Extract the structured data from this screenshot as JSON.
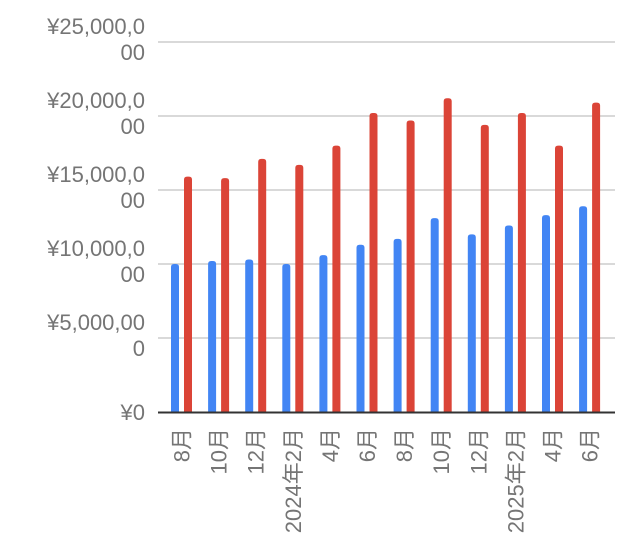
{
  "chart_data": {
    "type": "bar",
    "categories": [
      "8月",
      "10月",
      "12月",
      "2024年2月",
      "4月",
      "6月",
      "8月",
      "10月",
      "12月",
      "2025年2月",
      "4月",
      "6月"
    ],
    "series": [
      {
        "color": "#4285F4",
        "values": [
          10000,
          10200,
          10300,
          10000,
          10600,
          11300,
          11700,
          13100,
          12000,
          12600,
          13300,
          13900
        ]
      },
      {
        "color": "#DB4437",
        "values": [
          15900,
          15800,
          17100,
          16700,
          18000,
          20200,
          19700,
          21200,
          19400,
          20200,
          18000,
          20900
        ]
      }
    ],
    "y_ticks": [
      {
        "value": 0,
        "lines": [
          "¥0"
        ]
      },
      {
        "value": 5000,
        "lines": [
          "¥5,000,00",
          "0"
        ]
      },
      {
        "value": 10000,
        "lines": [
          "¥10,000,0",
          "00"
        ]
      },
      {
        "value": 15000,
        "lines": [
          "¥15,000,0",
          "00"
        ]
      },
      {
        "value": 20000,
        "lines": [
          "¥20,000,0",
          "00"
        ]
      },
      {
        "value": 25000,
        "lines": [
          "¥25,000,0",
          "00"
        ]
      }
    ],
    "ylim": [
      0,
      25000
    ],
    "grid": true,
    "legend": "none"
  }
}
